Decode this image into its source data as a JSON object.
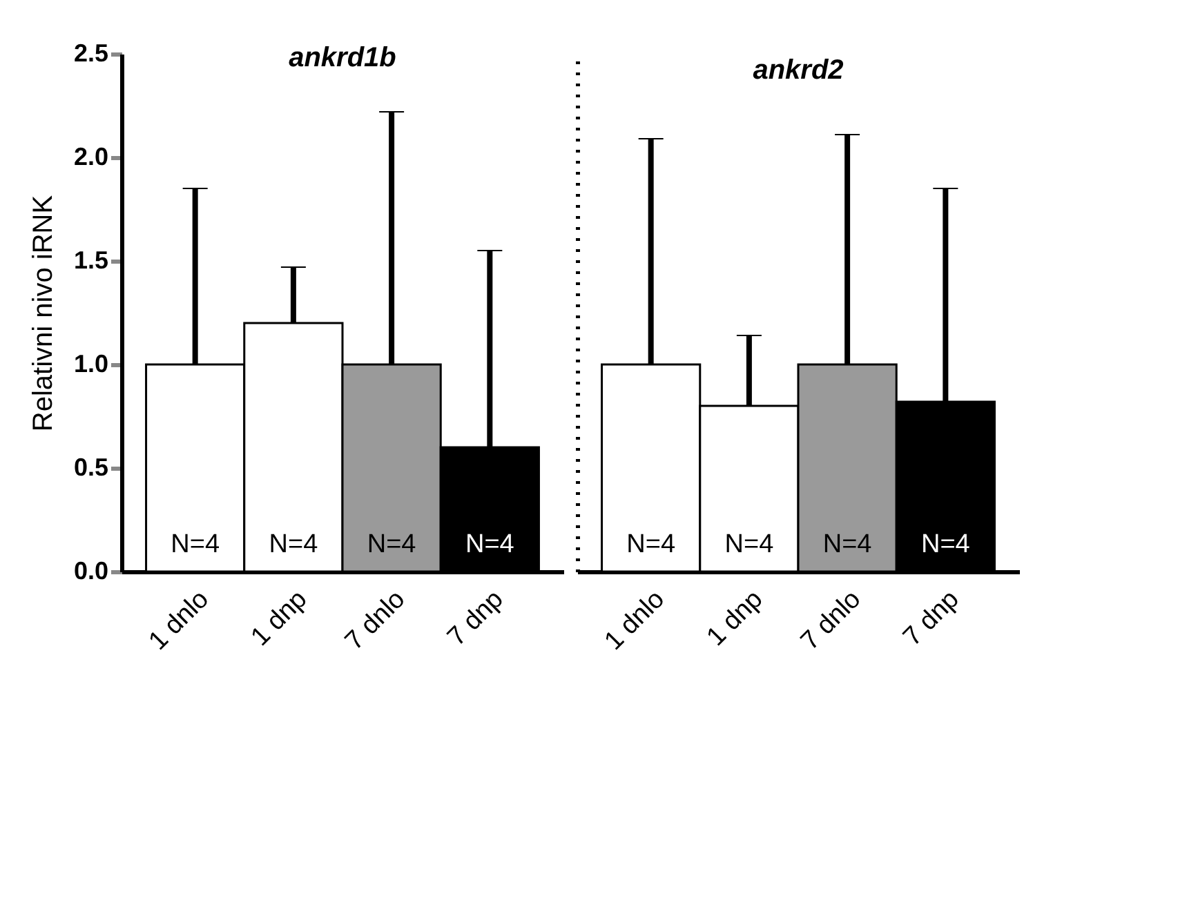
{
  "chart_data": [
    {
      "type": "bar",
      "title": "ankrd1b",
      "ylabel": "Relativni nivo iRNK",
      "categories": [
        "1 dnlo",
        "1 dnp",
        "7 dnlo",
        "7 dnp"
      ],
      "values": [
        1.0,
        1.2,
        1.0,
        0.6
      ],
      "colors": [
        "#ffffff",
        "#ffffff",
        "#9a9a9a",
        "#000000"
      ],
      "errors": [
        [
          1.0,
          1.85
        ],
        [
          1.2,
          1.47
        ],
        [
          1.0,
          2.22
        ],
        [
          0.6,
          1.55
        ]
      ],
      "ylim": [
        0,
        2.5
      ],
      "yticks": [
        {
          "value": 0,
          "label": "0.0"
        },
        {
          "value": 0.5,
          "label": "0.5"
        },
        {
          "value": 1,
          "label": "1.0"
        },
        {
          "value": 1.5,
          "label": "1.5"
        },
        {
          "value": 2,
          "label": "2.0"
        },
        {
          "value": 2.5,
          "label": "2.5"
        }
      ],
      "grid": false,
      "legend": false,
      "annotations": [
        "N=4",
        "N=4",
        "N=4",
        "N=4"
      ]
    },
    {
      "type": "bar",
      "title": "ankrd2",
      "categories": [
        "1 dnlo",
        "1 dnp",
        "7 dnlo",
        "7 dnp"
      ],
      "values": [
        1.0,
        0.8,
        1.0,
        0.82
      ],
      "colors": [
        "#ffffff",
        "#ffffff",
        "#9a9a9a",
        "#000000"
      ],
      "errors": [
        [
          1.0,
          2.09
        ],
        [
          0.8,
          1.14
        ],
        [
          1.0,
          2.11
        ],
        [
          0.82,
          1.85
        ]
      ],
      "ylim": [
        0,
        2.5
      ],
      "tick_labels": "x",
      "grid": false,
      "legend": false,
      "annotations": [
        "N=4",
        "N=4",
        "N=4",
        "N=4"
      ]
    }
  ]
}
